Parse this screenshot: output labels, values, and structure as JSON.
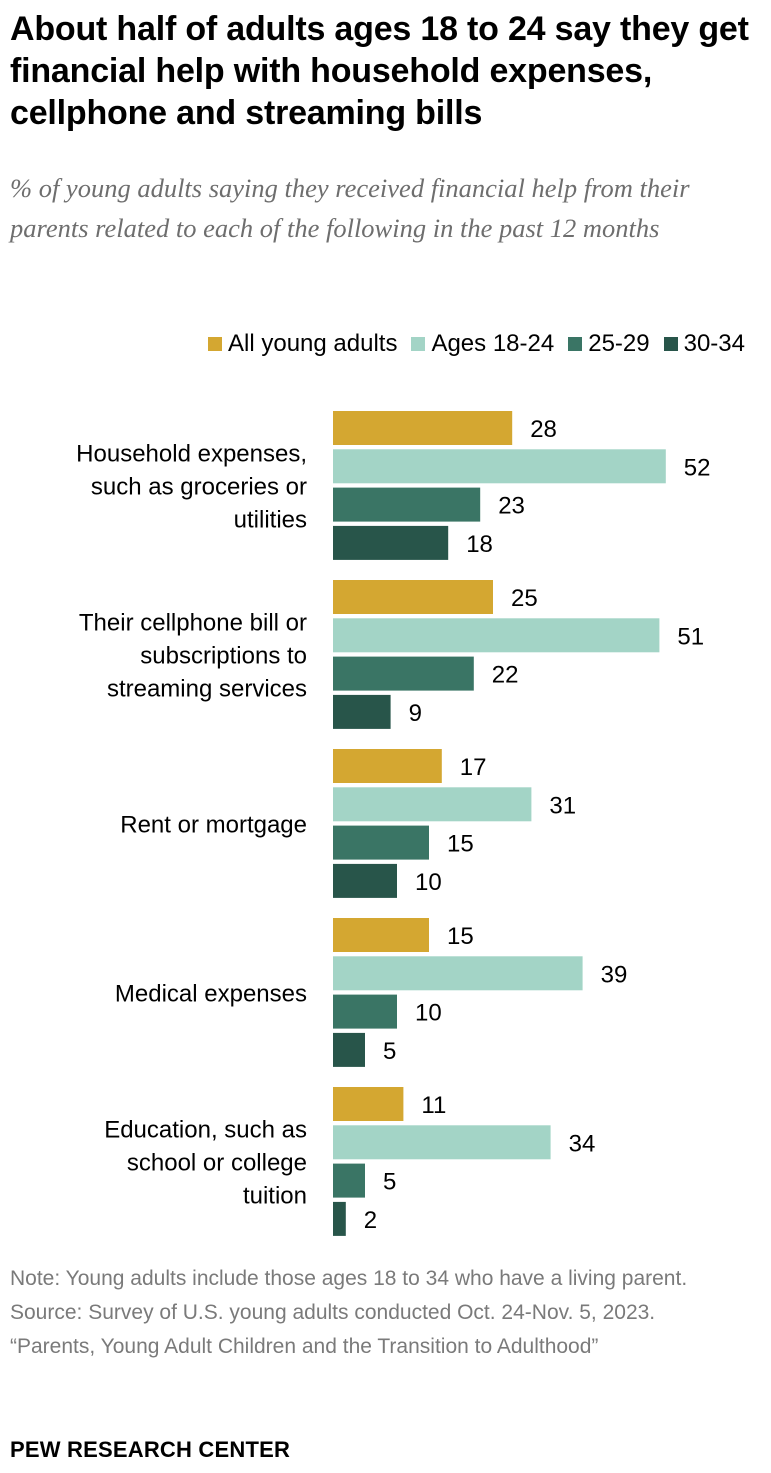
{
  "title": "About half of adults ages 18 to 24 say they get financial help with household expenses, cellphone and streaming bills",
  "subtitle": "% of young adults saying they received financial help from their parents related to each of the following in the past 12 months",
  "notes": {
    "note": "Note: Young adults include those ages 18 to 34 who have a living parent.",
    "source": "Source: Survey of U.S. young adults conducted Oct. 24-Nov. 5, 2023.",
    "report": "“Parents, Young Adult Children and the Transition to Adulthood”"
  },
  "brand": "PEW RESEARCH CENTER",
  "chart_data": {
    "type": "bar",
    "orientation": "horizontal",
    "grid": false,
    "legend_position": "top-right",
    "categories": [
      [
        "Household expenses,",
        "such as groceries or",
        "utilities"
      ],
      [
        "Their cellphone bill or",
        "subscriptions to",
        "streaming services"
      ],
      [
        "Rent or mortgage"
      ],
      [
        "Medical expenses"
      ],
      [
        "Education, such as",
        "school or college",
        "tuition"
      ]
    ],
    "series": [
      {
        "name": "All young adults",
        "color": "#d4a731",
        "values": [
          28,
          25,
          17,
          15,
          11
        ]
      },
      {
        "name": "Ages 18-24",
        "color": "#a3d4c6",
        "values": [
          52,
          51,
          31,
          39,
          34
        ]
      },
      {
        "name": "25-29",
        "color": "#3a7565",
        "values": [
          23,
          22,
          15,
          10,
          5
        ]
      },
      {
        "name": "30-34",
        "color": "#28554a",
        "values": [
          18,
          9,
          10,
          5,
          2
        ]
      }
    ]
  }
}
